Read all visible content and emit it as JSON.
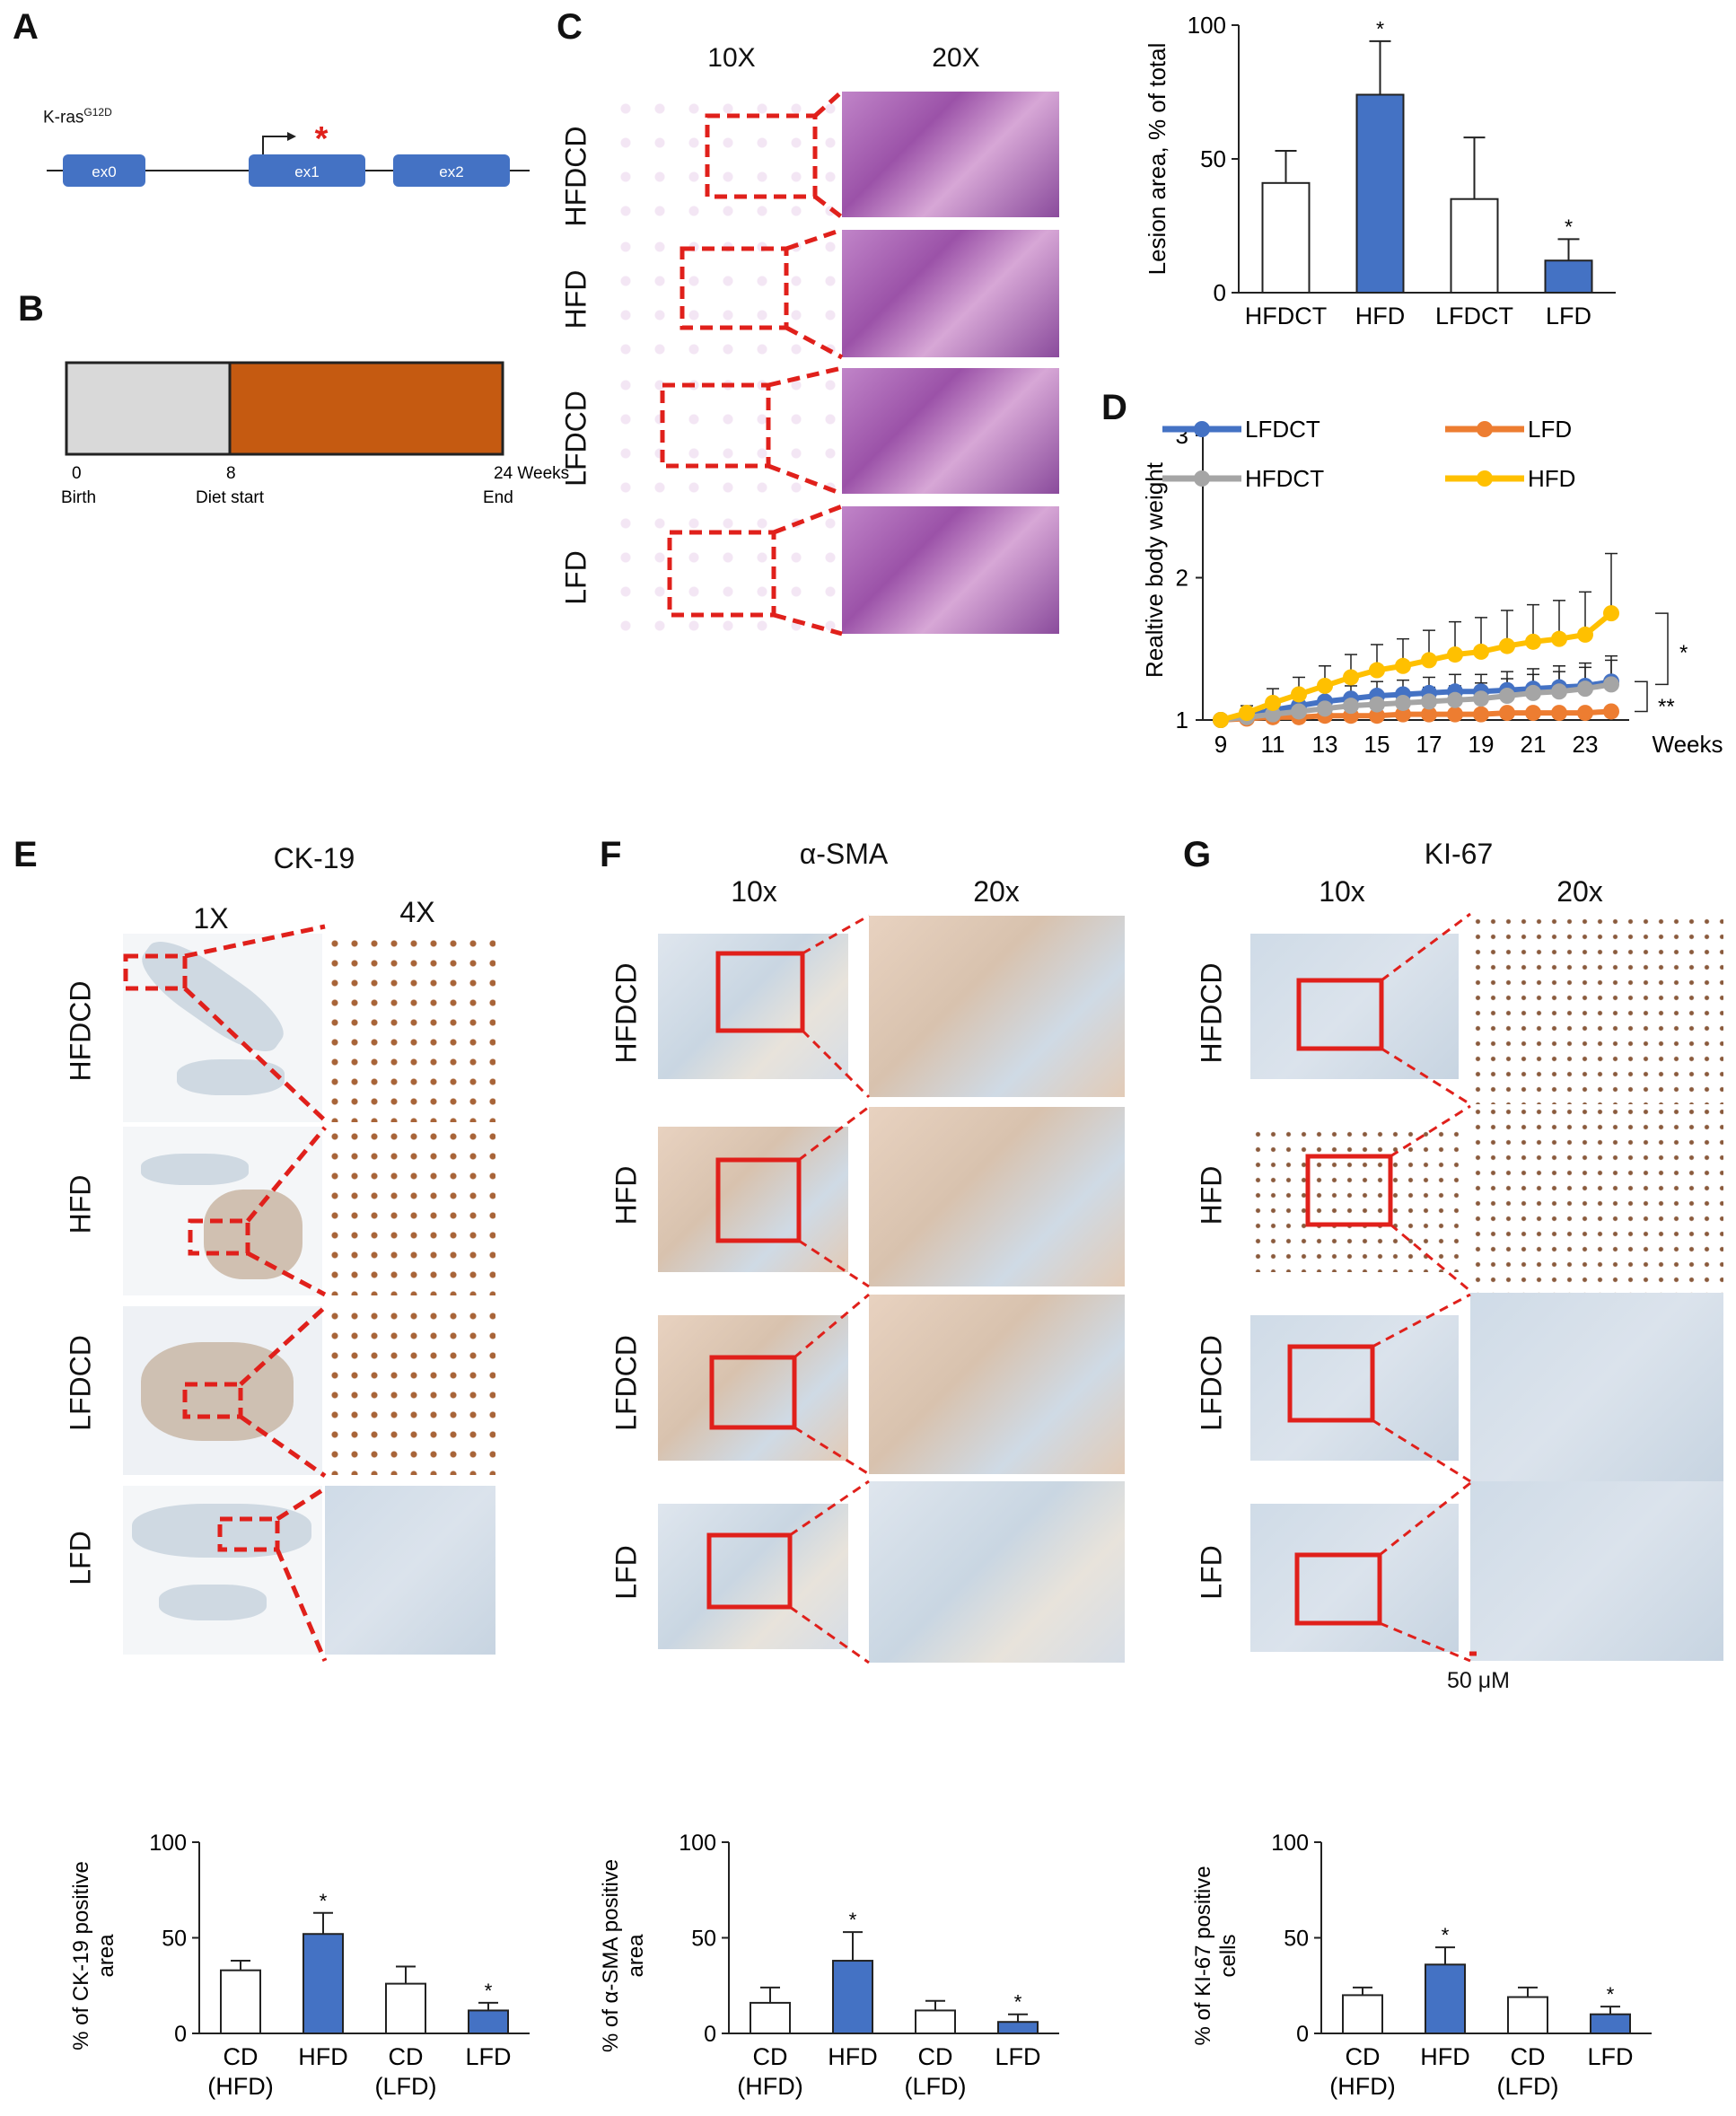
{
  "panels": {
    "A": {
      "label": "A",
      "construct_name": "K-ras",
      "construct_superscript": "G12D",
      "exons": [
        "ex0",
        "ex1",
        "ex2"
      ],
      "mutation_mark": "*"
    },
    "B": {
      "label": "B",
      "colors": {
        "pre": "#d9d9d9",
        "diet": "#c55a11"
      },
      "ticks": [
        {
          "value": "0",
          "caption": "Birth"
        },
        {
          "value": "8",
          "caption": "Diet start"
        },
        {
          "value": "24 Weeks",
          "caption": "End"
        }
      ]
    },
    "C": {
      "label": "C",
      "columns": [
        "10X",
        "20X"
      ],
      "rows": [
        "HFDCD",
        "HFD",
        "LFDCD",
        "LFD"
      ]
    },
    "D": {
      "label": "D",
      "sig_top": "*",
      "sig_bottom": "**"
    },
    "E": {
      "label": "E",
      "title": "CK-19",
      "columns": [
        "1X",
        "4X"
      ],
      "rows": [
        "HFDCD",
        "HFD",
        "LFDCD",
        "LFD"
      ]
    },
    "F": {
      "label": "F",
      "title": "α-SMA",
      "columns": [
        "10x",
        "20x"
      ],
      "rows": [
        "HFDCD",
        "HFD",
        "LFDCD",
        "LFD"
      ]
    },
    "G": {
      "label": "G",
      "title": "KI-67",
      "columns": [
        "10x",
        "20x"
      ],
      "rows": [
        "HFDCD",
        "HFD",
        "LFDCD",
        "LFD"
      ],
      "scale_bar": "50 μM"
    }
  },
  "colors": {
    "blue": "#4472c4",
    "white": "#ffffff",
    "orange": "#ed7d31",
    "gray": "#a5a5a5",
    "yellow": "#ffc000",
    "red": "#e0201b"
  },
  "chart_data": [
    {
      "id": "lesion",
      "type": "bar",
      "ylabel": "Lesion area, % of total",
      "ylim": [
        0,
        100
      ],
      "yticks": [
        0,
        50,
        100
      ],
      "categories": [
        "HFDCT",
        "HFD",
        "LFDCT",
        "LFD"
      ],
      "values": [
        41,
        74,
        35,
        12
      ],
      "errors": [
        12,
        20,
        23,
        8
      ],
      "fills": [
        "white",
        "blue",
        "white",
        "blue"
      ],
      "significance": [
        "",
        "*",
        "",
        "*"
      ]
    },
    {
      "id": "bodyweight",
      "type": "line",
      "ylabel": "Realtive body weight",
      "xlabel": "Weeks",
      "ylim": [
        1,
        3
      ],
      "yticks": [
        1,
        2,
        3
      ],
      "xlim": [
        9,
        24
      ],
      "xticks": [
        9,
        11,
        13,
        15,
        17,
        19,
        21,
        23
      ],
      "x": [
        9,
        10,
        11,
        12,
        13,
        14,
        15,
        16,
        17,
        18,
        19,
        20,
        21,
        22,
        23,
        24
      ],
      "series": [
        {
          "name": "LFDCT",
          "color": "orange_blue_key",
          "values": [
            1.0,
            1.03,
            1.07,
            1.1,
            1.13,
            1.15,
            1.17,
            1.18,
            1.19,
            1.2,
            1.2,
            1.21,
            1.22,
            1.23,
            1.24,
            1.27
          ],
          "errors": [
            0,
            0.03,
            0.05,
            0.07,
            0.08,
            0.09,
            0.1,
            0.1,
            0.11,
            0.12,
            0.12,
            0.13,
            0.14,
            0.15,
            0.16,
            0.18
          ],
          "colorHex": "#4472c4"
        },
        {
          "name": "LFD",
          "colorHex": "#ed7d31",
          "values": [
            1.0,
            1.01,
            1.02,
            1.02,
            1.03,
            1.03,
            1.03,
            1.04,
            1.04,
            1.04,
            1.04,
            1.05,
            1.05,
            1.05,
            1.05,
            1.06
          ],
          "errors": [
            0,
            0.01,
            0.02,
            0.02,
            0.02,
            0.02,
            0.02,
            0.03,
            0.03,
            0.03,
            0.03,
            0.03,
            0.03,
            0.03,
            0.03,
            0.03
          ]
        },
        {
          "name": "HFDCT",
          "colorHex": "#a5a5a5",
          "values": [
            1.0,
            1.02,
            1.04,
            1.06,
            1.08,
            1.1,
            1.11,
            1.12,
            1.13,
            1.14,
            1.15,
            1.17,
            1.19,
            1.2,
            1.22,
            1.25
          ],
          "errors": [
            0,
            0.03,
            0.04,
            0.05,
            0.06,
            0.07,
            0.08,
            0.09,
            0.1,
            0.1,
            0.11,
            0.12,
            0.13,
            0.14,
            0.15,
            0.17
          ]
        },
        {
          "name": "HFD",
          "colorHex": "#ffc000",
          "values": [
            1.0,
            1.05,
            1.12,
            1.18,
            1.24,
            1.3,
            1.35,
            1.38,
            1.42,
            1.46,
            1.48,
            1.52,
            1.55,
            1.57,
            1.6,
            1.75
          ],
          "errors": [
            0,
            0.05,
            0.1,
            0.12,
            0.14,
            0.16,
            0.18,
            0.19,
            0.21,
            0.23,
            0.24,
            0.25,
            0.26,
            0.27,
            0.3,
            0.42
          ]
        }
      ]
    },
    {
      "id": "ck19",
      "type": "bar",
      "ylabel_lines": [
        "% of CK-19 positive",
        "area"
      ],
      "ylim": [
        0,
        100
      ],
      "yticks": [
        0,
        50,
        100
      ],
      "categories": [
        [
          "CD",
          "(HFD)"
        ],
        [
          "HFD"
        ],
        [
          "CD",
          "(LFD)"
        ],
        [
          "LFD"
        ]
      ],
      "values": [
        33,
        52,
        26,
        12
      ],
      "errors": [
        5,
        11,
        9,
        4
      ],
      "fills": [
        "white",
        "blue",
        "white",
        "blue"
      ],
      "significance": [
        "",
        "*",
        "",
        "*"
      ]
    },
    {
      "id": "asma",
      "type": "bar",
      "ylabel_lines": [
        "% of α-SMA positive",
        "area"
      ],
      "ylim": [
        0,
        100
      ],
      "yticks": [
        0,
        50,
        100
      ],
      "categories": [
        [
          "CD",
          "(HFD)"
        ],
        [
          "HFD"
        ],
        [
          "CD",
          "(LFD)"
        ],
        [
          "LFD"
        ]
      ],
      "values": [
        16,
        38,
        12,
        6
      ],
      "errors": [
        8,
        15,
        5,
        4
      ],
      "fills": [
        "white",
        "blue",
        "white",
        "blue"
      ],
      "significance": [
        "",
        "*",
        "",
        "*"
      ]
    },
    {
      "id": "ki67",
      "type": "bar",
      "ylabel_lines": [
        "% of KI-67 positive",
        "cells"
      ],
      "ylim": [
        0,
        100
      ],
      "yticks": [
        0,
        50,
        100
      ],
      "categories": [
        [
          "CD",
          "(HFD)"
        ],
        [
          "HFD"
        ],
        [
          "CD",
          "(LFD)"
        ],
        [
          "LFD"
        ]
      ],
      "values": [
        20,
        36,
        19,
        10
      ],
      "errors": [
        4,
        9,
        5,
        4
      ],
      "fills": [
        "white",
        "blue",
        "white",
        "blue"
      ],
      "significance": [
        "",
        "*",
        "",
        "*"
      ]
    }
  ]
}
